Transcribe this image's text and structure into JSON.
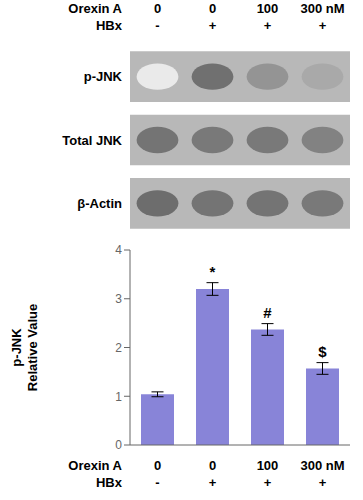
{
  "chart_data": [
    {
      "type": "blot",
      "category_rows": [
        {
          "label": "Orexin A",
          "values": [
            "0",
            "0",
            "100",
            "300 nM"
          ]
        },
        {
          "label": "HBx",
          "values": [
            "-",
            "+",
            "+",
            "+"
          ]
        }
      ],
      "series": [
        {
          "name": "p-JNK",
          "values": [
            0.12,
            0.8,
            0.6,
            0.48
          ]
        },
        {
          "name": "Total JNK",
          "values": [
            0.78,
            0.75,
            0.75,
            0.7
          ]
        },
        {
          "name": "β-Actin",
          "values": [
            0.82,
            0.78,
            0.78,
            0.75
          ]
        }
      ],
      "color": "#b8b8b8"
    },
    {
      "type": "bar",
      "category_rows": [
        {
          "label": "Orexin A",
          "values": [
            "0",
            "0",
            "100",
            "300 nM"
          ]
        },
        {
          "label": "HBx",
          "values": [
            "-",
            "+",
            "+",
            "+"
          ]
        }
      ],
      "values": [
        1.04,
        3.2,
        2.37,
        1.57
      ],
      "errors": [
        0.05,
        0.13,
        0.12,
        0.12
      ],
      "ylim": [
        0,
        4
      ],
      "yticks": [
        0,
        1,
        2,
        3,
        4
      ],
      "ylabel": "p-JNK\nRelative Value",
      "grid": false,
      "annotations": [
        {
          "text": "*",
          "index": 1
        },
        {
          "text": "#",
          "index": 2
        },
        {
          "text": "$",
          "index": 3
        }
      ]
    }
  ]
}
